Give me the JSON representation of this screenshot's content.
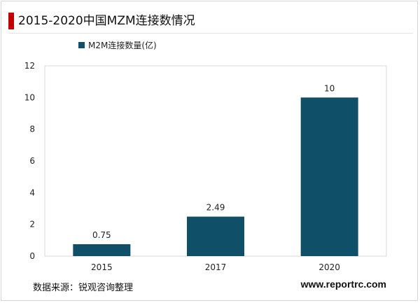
{
  "header": {
    "title": "2015-2020中国MZM连接数情况"
  },
  "footer": {
    "source": "数据来源：锐观咨询整理",
    "website": "www.reportrc.com"
  },
  "chart_data": {
    "type": "bar",
    "categories": [
      "2015",
      "2017",
      "2020"
    ],
    "series": [
      {
        "name": "M2M连接数量(亿)",
        "values": [
          0.75,
          2.49,
          10
        ],
        "labels": [
          "0.75",
          "2.49",
          "10"
        ]
      }
    ],
    "ylim": [
      0,
      12
    ],
    "yticks": [
      0,
      2,
      4,
      6,
      8,
      10,
      12
    ],
    "grid": false,
    "legend": "top-left",
    "bar_color": "#0f5068"
  }
}
